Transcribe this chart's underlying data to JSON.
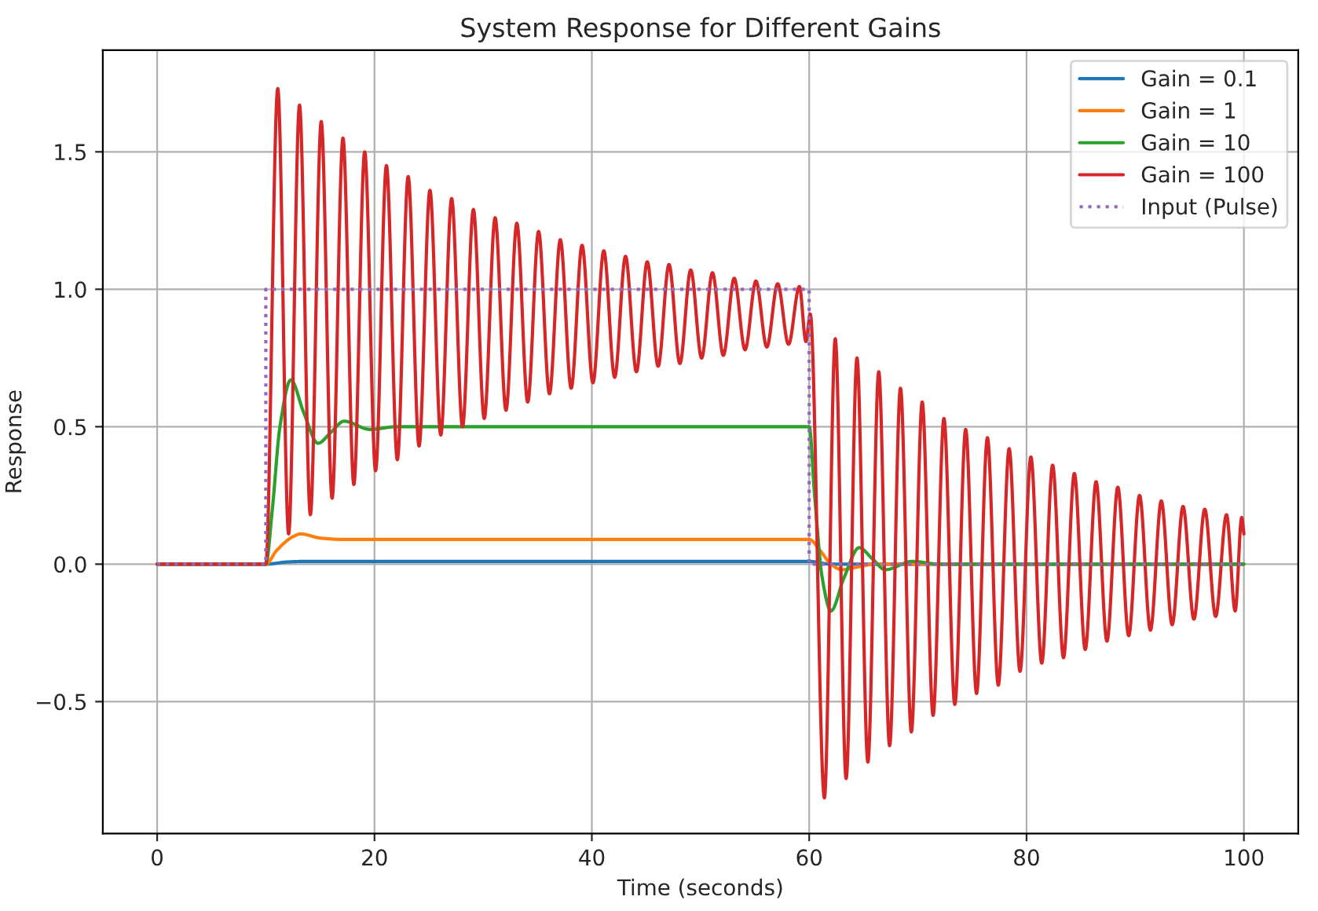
{
  "chart_data": {
    "type": "line",
    "title": "System Response for Different Gains",
    "xlabel": "Time (seconds)",
    "ylabel": "Response",
    "xlim": [
      -5,
      105
    ],
    "ylim": [
      -0.98,
      1.87
    ],
    "xticks": [
      0,
      20,
      40,
      60,
      80,
      100
    ],
    "yticks": [
      {
        "value": -0.5,
        "label": "−0.5"
      },
      {
        "value": 0,
        "label": "0.0"
      },
      0.5,
      {
        "value": 1,
        "label": "1.0"
      },
      1.5
    ],
    "grid": true,
    "legend": "top right",
    "marker": "none",
    "line_style": "solid",
    "series": [
      {
        "name": "Gain = 0.1",
        "color": "#1f77b4",
        "x": [
          0,
          10,
          12,
          13.5,
          60,
          62,
          100
        ],
        "values": [
          0,
          0,
          0.008,
          0.01,
          0.01,
          0,
          0
        ]
      },
      {
        "name": "Gain = 1",
        "color": "#ff7f0e",
        "x": [
          0,
          10,
          11,
          12.5,
          13.2,
          15,
          17,
          60,
          61,
          62,
          63,
          64.5,
          66,
          100
        ],
        "values": [
          0,
          0,
          0.05,
          0.1,
          0.11,
          0.095,
          0.09,
          0.09,
          0.05,
          0,
          -0.02,
          -0.01,
          0,
          0
        ]
      },
      {
        "name": "Gain = 10",
        "color": "#2ca02c",
        "x": [
          0,
          10,
          10.6,
          11.3,
          12.3,
          13.5,
          14.8,
          16,
          17.2,
          19.6,
          22,
          60,
          60.5,
          61.2,
          62,
          63.2,
          64.6,
          65.8,
          67,
          69.5,
          72,
          100
        ],
        "values": [
          0,
          0,
          0.2,
          0.5,
          0.67,
          0.55,
          0.44,
          0.48,
          0.52,
          0.49,
          0.5,
          0.5,
          0.25,
          -0.05,
          -0.17,
          -0.05,
          0.06,
          0.02,
          -0.02,
          0.01,
          0,
          0
        ]
      },
      {
        "name": "Gain = 100",
        "color": "#d62728",
        "x": [
          0,
          10,
          11.1,
          12.1,
          13.1,
          14.1,
          15.1,
          16.1,
          17.1,
          18.1,
          19.1,
          20.1,
          21.1,
          22.1,
          23.1,
          24.1,
          25.1,
          26.1,
          27.1,
          28.1,
          29.1,
          30.1,
          31.1,
          32.1,
          33.1,
          34.1,
          35.1,
          36.1,
          37.1,
          38.1,
          39.1,
          40.1,
          41.1,
          42.1,
          43.1,
          44.1,
          45.1,
          46.1,
          47.1,
          48.1,
          49.1,
          50.1,
          51.1,
          52.1,
          53.1,
          54.1,
          55.1,
          56.1,
          57.1,
          58.1,
          59.1,
          59.7,
          60.1,
          61.4,
          62.4,
          63.4,
          64.4,
          65.4,
          66.4,
          67.4,
          68.4,
          69.4,
          70.4,
          71.4,
          72.4,
          73.4,
          74.4,
          75.4,
          76.4,
          77.4,
          78.4,
          79.4,
          80.4,
          81.4,
          82.4,
          83.4,
          84.4,
          85.4,
          86.4,
          87.4,
          88.4,
          89.4,
          90.4,
          91.4,
          92.4,
          93.4,
          94.4,
          95.4,
          96.4,
          97.4,
          98.4,
          99.2,
          99.8,
          100
        ],
        "values": [
          0,
          0,
          1.73,
          0.11,
          1.67,
          0.18,
          1.61,
          0.24,
          1.55,
          0.29,
          1.5,
          0.34,
          1.45,
          0.38,
          1.41,
          0.43,
          1.36,
          0.47,
          1.33,
          0.5,
          1.29,
          0.53,
          1.26,
          0.56,
          1.24,
          0.59,
          1.21,
          0.62,
          1.18,
          0.64,
          1.16,
          0.66,
          1.14,
          0.68,
          1.12,
          0.7,
          1.1,
          0.72,
          1.09,
          0.73,
          1.07,
          0.75,
          1.06,
          0.76,
          1.04,
          0.78,
          1.03,
          0.79,
          1.02,
          0.8,
          1.01,
          0.81,
          0.91,
          -0.85,
          0.82,
          -0.78,
          0.75,
          -0.72,
          0.7,
          -0.66,
          0.64,
          -0.61,
          0.59,
          -0.55,
          0.53,
          -0.51,
          0.49,
          -0.47,
          0.46,
          -0.44,
          0.42,
          -0.39,
          0.39,
          -0.36,
          0.36,
          -0.34,
          0.33,
          -0.31,
          0.3,
          -0.28,
          0.28,
          -0.26,
          0.25,
          -0.24,
          0.23,
          -0.22,
          0.21,
          -0.2,
          0.2,
          -0.19,
          0.18,
          -0.17,
          0.17,
          0.11
        ]
      },
      {
        "name": "Input (Pulse)",
        "color": "#9467bd",
        "type": "step",
        "line_style": "dotted",
        "x": [
          0,
          10,
          60,
          100
        ],
        "values": [
          0,
          1,
          0,
          0
        ]
      }
    ]
  }
}
